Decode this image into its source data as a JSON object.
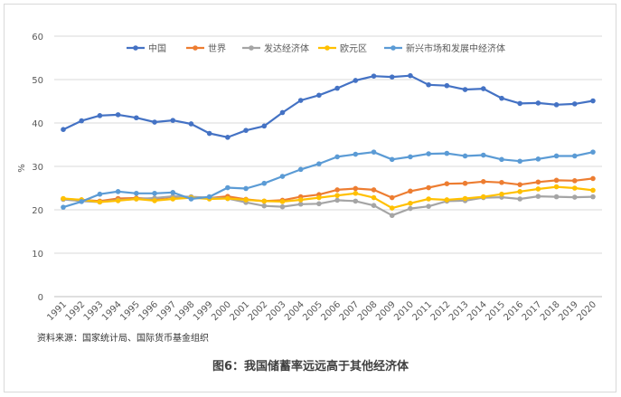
{
  "chart_data": {
    "type": "line",
    "ylabel": "%",
    "ylim": [
      0,
      60
    ],
    "yticks": [
      0,
      10,
      20,
      30,
      40,
      50,
      60
    ],
    "grid": "horizontal",
    "legend_position": "top",
    "x": [
      "1991",
      "1992",
      "1993",
      "1994",
      "1995",
      "1996",
      "1997",
      "1998",
      "1999",
      "2000",
      "2001",
      "2002",
      "2003",
      "2004",
      "2005",
      "2006",
      "2007",
      "2008",
      "2009",
      "2010",
      "2011",
      "2012",
      "2013",
      "2014",
      "2015",
      "2016",
      "2017",
      "2018",
      "2019",
      "2020"
    ],
    "series": [
      {
        "name": "中国",
        "color": "#4472C4",
        "values": [
          38.5,
          40.5,
          41.7,
          41.9,
          41.2,
          40.2,
          40.6,
          39.8,
          37.6,
          36.7,
          38.3,
          39.3,
          42.4,
          45.2,
          46.4,
          48.0,
          49.8,
          50.8,
          50.6,
          50.9,
          48.8,
          48.6,
          47.7,
          47.9,
          45.7,
          44.5,
          44.6,
          44.2,
          44.4,
          45.1
        ]
      },
      {
        "name": "世界",
        "color": "#ED7D31",
        "values": [
          22.5,
          22.3,
          22.0,
          22.6,
          22.7,
          22.5,
          23.0,
          22.8,
          22.7,
          23.1,
          22.4,
          22.0,
          22.2,
          23.0,
          23.5,
          24.6,
          24.9,
          24.6,
          22.8,
          24.3,
          25.1,
          26.0,
          26.1,
          26.5,
          26.3,
          25.8,
          26.4,
          26.8,
          26.7,
          27.2
        ]
      },
      {
        "name": "发达经济体",
        "color": "#A5A5A5",
        "values": [
          22.4,
          22.0,
          21.8,
          22.2,
          22.5,
          22.7,
          23.1,
          23.0,
          22.8,
          22.6,
          21.7,
          20.9,
          20.7,
          21.3,
          21.4,
          22.2,
          22.0,
          21.0,
          18.7,
          20.3,
          20.8,
          22.0,
          22.1,
          22.8,
          22.9,
          22.5,
          23.1,
          23.0,
          22.9,
          23.0
        ]
      },
      {
        "name": "欧元区",
        "color": "#FFC000",
        "values": [
          22.6,
          22.3,
          21.8,
          22.1,
          22.5,
          22.1,
          22.5,
          22.8,
          22.5,
          22.6,
          22.3,
          22.0,
          21.9,
          22.3,
          22.8,
          23.3,
          23.8,
          22.8,
          20.4,
          21.5,
          22.5,
          22.3,
          22.6,
          23.0,
          23.6,
          24.2,
          24.8,
          25.3,
          25.0,
          24.5
        ]
      },
      {
        "name": "新兴市场和发展中经济体",
        "color": "#5B9BD5",
        "values": [
          20.6,
          21.9,
          23.6,
          24.2,
          23.8,
          23.8,
          24.0,
          22.5,
          23.0,
          25.1,
          24.9,
          26.1,
          27.7,
          29.3,
          30.6,
          32.2,
          32.8,
          33.3,
          31.6,
          32.2,
          32.9,
          33.0,
          32.4,
          32.6,
          31.6,
          31.2,
          31.7,
          32.4,
          32.4,
          33.3
        ]
      }
    ]
  },
  "source_text": "资料来源：国家统计局、国际货币基金组织",
  "caption": "图6：我国储蓄率远远高于其他经济体"
}
